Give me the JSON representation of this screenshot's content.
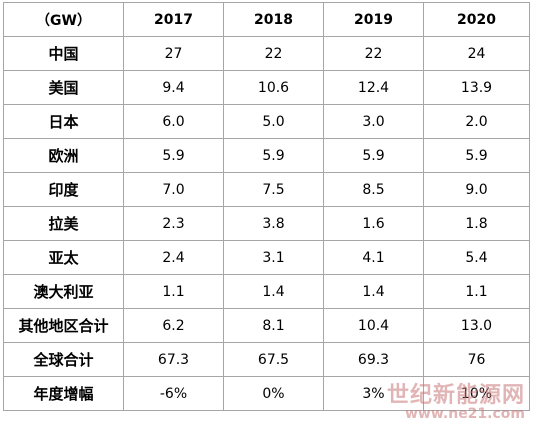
{
  "table": {
    "header": [
      "（GW）",
      "2017",
      "2018",
      "2019",
      "2020"
    ],
    "rows": [
      {
        "label": "中国",
        "values": [
          "27",
          "22",
          "22",
          "24"
        ]
      },
      {
        "label": "美国",
        "values": [
          "9.4",
          "10.6",
          "12.4",
          "13.9"
        ]
      },
      {
        "label": "日本",
        "values": [
          "6.0",
          "5.0",
          "3.0",
          "2.0"
        ]
      },
      {
        "label": "欧洲",
        "values": [
          "5.9",
          "5.9",
          "5.9",
          "5.9"
        ]
      },
      {
        "label": "印度",
        "values": [
          "7.0",
          "7.5",
          "8.5",
          "9.0"
        ]
      },
      {
        "label": "拉美",
        "values": [
          "2.3",
          "3.8",
          "1.6",
          "1.8"
        ]
      },
      {
        "label": "亚太",
        "values": [
          "2.4",
          "3.1",
          "4.1",
          "5.4"
        ]
      },
      {
        "label": "澳大利亚",
        "values": [
          "1.1",
          "1.4",
          "1.4",
          "1.1"
        ]
      },
      {
        "label": "其他地区合计",
        "values": [
          "6.2",
          "8.1",
          "10.4",
          "13.0"
        ]
      },
      {
        "label": "全球合计",
        "values": [
          "67.3",
          "67.5",
          "69.3",
          "76"
        ]
      },
      {
        "label": "年度增幅",
        "values": [
          "-6%",
          "0%",
          "3%",
          "10%"
        ]
      }
    ]
  },
  "watermark": {
    "title": "世纪新能源网",
    "url": "www.ne21.com"
  }
}
